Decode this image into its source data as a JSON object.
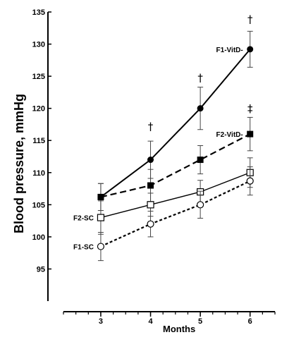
{
  "chart_data": {
    "type": "line",
    "ylabel": "Blood pressure, mmHg",
    "xlabel": "Months",
    "x": [
      3,
      4,
      5,
      6
    ],
    "xlim": [
      2.25,
      6.5
    ],
    "ylim": [
      90,
      135
    ],
    "yticks": [
      95,
      100,
      105,
      110,
      115,
      120,
      125,
      130,
      135
    ],
    "grid": false,
    "series": [
      {
        "name": "F1-VitD-",
        "values": [
          106.2,
          112,
          120,
          129.2
        ],
        "errors": [
          2.1,
          2.9,
          3.3,
          2.8
        ],
        "marker": "filled-circle",
        "line_style": "solid"
      },
      {
        "name": "F2-VitD-",
        "values": [
          106.2,
          108,
          112,
          116
        ],
        "errors": [
          2.1,
          2.5,
          2.2,
          2.6
        ],
        "marker": "filled-square",
        "line_style": "dashed"
      },
      {
        "name": "F2-SC",
        "values": [
          103,
          105,
          107,
          110
        ],
        "errors": [
          2.6,
          1.8,
          1.8,
          2.3
        ],
        "marker": "open-square",
        "line_style": "solid"
      },
      {
        "name": "F1-SC",
        "values": [
          98.5,
          102,
          105,
          108.7
        ],
        "errors": [
          2.2,
          2.0,
          2.1,
          2.2
        ],
        "marker": "open-circle",
        "line_style": "dotted"
      }
    ],
    "annotations": [
      {
        "text": "†",
        "x": 4,
        "y": 116.6
      },
      {
        "text": "†",
        "x": 5,
        "y": 124.2
      },
      {
        "text": "†",
        "x": 6,
        "y": 133.3
      },
      {
        "text": "‡",
        "x": 6,
        "y": 119.4
      }
    ]
  }
}
